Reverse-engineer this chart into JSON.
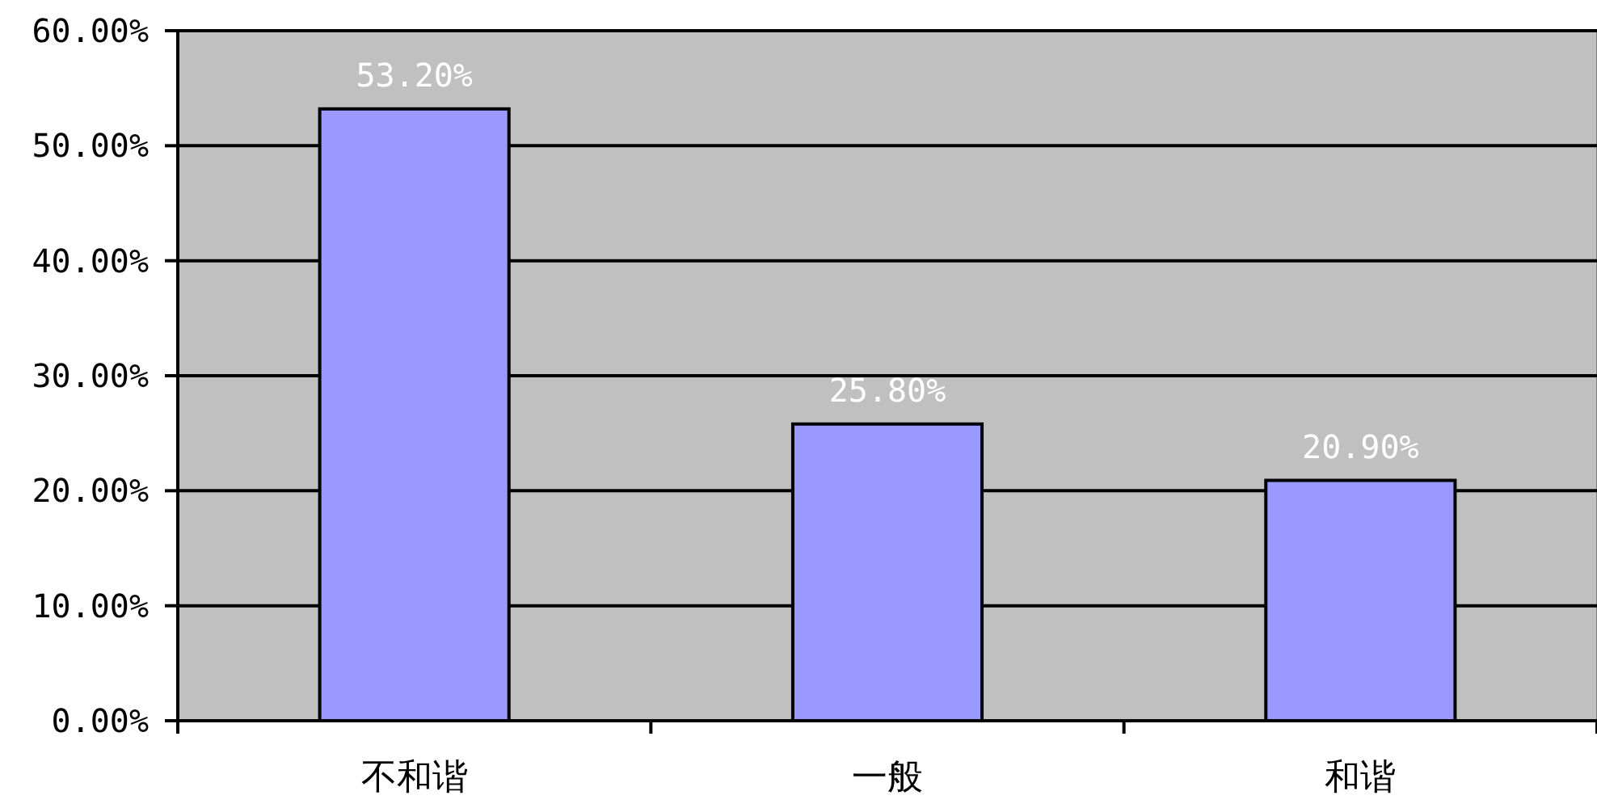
{
  "chart_data": {
    "type": "bar",
    "categories": [
      "不和谐",
      "一般",
      "和谐"
    ],
    "values": [
      53.2,
      25.8,
      20.9
    ],
    "value_labels": [
      "53.20%",
      "25.80%",
      "20.90%"
    ],
    "color": "#9999ff",
    "ylim": [
      0,
      60
    ],
    "yticks": [
      {
        "value": 0,
        "label": "0.00%"
      },
      {
        "value": 10,
        "label": "10.00%"
      },
      {
        "value": 20,
        "label": "20.00%"
      },
      {
        "value": 30,
        "label": "30.00%"
      },
      {
        "value": 40,
        "label": "40.00%"
      },
      {
        "value": 50,
        "label": "50.00%"
      },
      {
        "value": 60,
        "label": "60.00%"
      }
    ],
    "grid": "y"
  }
}
